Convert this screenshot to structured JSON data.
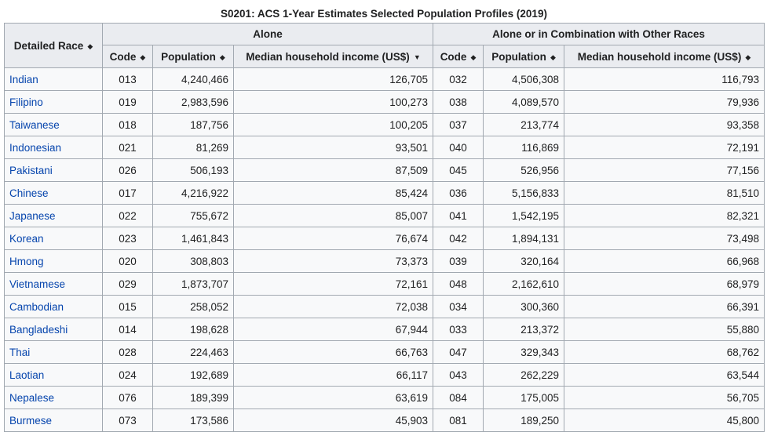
{
  "caption": "S0201: ACS 1-Year Estimates Selected Population Profiles (2019)",
  "headers": {
    "race": "Detailed Race",
    "alone": "Alone",
    "combo": "Alone or in Combination with Other Races",
    "code": "Code",
    "population": "Population",
    "income": "Median household income (US$)"
  },
  "icons": {
    "sort": "sort-both-icon",
    "sort_desc": "sort-descending-icon"
  },
  "rows": [
    {
      "race": "Indian",
      "a_code": "013",
      "a_pop": "4,240,466",
      "a_inc": "126,705",
      "c_code": "032",
      "c_pop": "4,506,308",
      "c_inc": "116,793"
    },
    {
      "race": "Filipino",
      "a_code": "019",
      "a_pop": "2,983,596",
      "a_inc": "100,273",
      "c_code": "038",
      "c_pop": "4,089,570",
      "c_inc": "79,936"
    },
    {
      "race": "Taiwanese",
      "a_code": "018",
      "a_pop": "187,756",
      "a_inc": "100,205",
      "c_code": "037",
      "c_pop": "213,774",
      "c_inc": "93,358"
    },
    {
      "race": "Indonesian",
      "a_code": "021",
      "a_pop": "81,269",
      "a_inc": "93,501",
      "c_code": "040",
      "c_pop": "116,869",
      "c_inc": "72,191"
    },
    {
      "race": "Pakistani",
      "a_code": "026",
      "a_pop": "506,193",
      "a_inc": "87,509",
      "c_code": "045",
      "c_pop": "526,956",
      "c_inc": "77,156"
    },
    {
      "race": "Chinese",
      "a_code": "017",
      "a_pop": "4,216,922",
      "a_inc": "85,424",
      "c_code": "036",
      "c_pop": "5,156,833",
      "c_inc": "81,510"
    },
    {
      "race": "Japanese",
      "a_code": "022",
      "a_pop": "755,672",
      "a_inc": "85,007",
      "c_code": "041",
      "c_pop": "1,542,195",
      "c_inc": "82,321"
    },
    {
      "race": "Korean",
      "a_code": "023",
      "a_pop": "1,461,843",
      "a_inc": "76,674",
      "c_code": "042",
      "c_pop": "1,894,131",
      "c_inc": "73,498"
    },
    {
      "race": "Hmong",
      "a_code": "020",
      "a_pop": "308,803",
      "a_inc": "73,373",
      "c_code": "039",
      "c_pop": "320,164",
      "c_inc": "66,968"
    },
    {
      "race": "Vietnamese",
      "a_code": "029",
      "a_pop": "1,873,707",
      "a_inc": "72,161",
      "c_code": "048",
      "c_pop": "2,162,610",
      "c_inc": "68,979"
    },
    {
      "race": "Cambodian",
      "a_code": "015",
      "a_pop": "258,052",
      "a_inc": "72,038",
      "c_code": "034",
      "c_pop": "300,360",
      "c_inc": "66,391"
    },
    {
      "race": "Bangladeshi",
      "a_code": "014",
      "a_pop": "198,628",
      "a_inc": "67,944",
      "c_code": "033",
      "c_pop": "213,372",
      "c_inc": "55,880"
    },
    {
      "race": "Thai",
      "a_code": "028",
      "a_pop": "224,463",
      "a_inc": "66,763",
      "c_code": "047",
      "c_pop": "329,343",
      "c_inc": "68,762"
    },
    {
      "race": "Laotian",
      "a_code": "024",
      "a_pop": "192,689",
      "a_inc": "66,117",
      "c_code": "043",
      "c_pop": "262,229",
      "c_inc": "63,544"
    },
    {
      "race": "Nepalese",
      "a_code": "076",
      "a_pop": "189,399",
      "a_inc": "63,619",
      "c_code": "084",
      "c_pop": "175,005",
      "c_inc": "56,705"
    },
    {
      "race": "Burmese",
      "a_code": "073",
      "a_pop": "173,586",
      "a_inc": "45,903",
      "c_code": "081",
      "c_pop": "189,250",
      "c_inc": "45,800"
    }
  ]
}
